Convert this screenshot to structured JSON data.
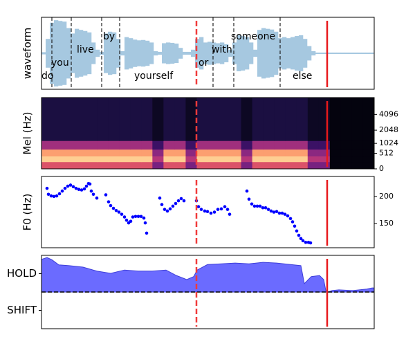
{
  "chart_data": [
    {
      "type": "waveform",
      "ylabel": "waveform",
      "xlim": [
        0,
        481
      ],
      "ylim": [
        -1,
        1
      ],
      "color": "#a6c8e0",
      "x": [
        3,
        9,
        15,
        21,
        27,
        33,
        39,
        45,
        51,
        57,
        63,
        69,
        75,
        81,
        87,
        93,
        99,
        105,
        111,
        117,
        123,
        129,
        135,
        141,
        147,
        153,
        159,
        165,
        171,
        177,
        183,
        189,
        195,
        201,
        207,
        213,
        219,
        225,
        231,
        237,
        243,
        249,
        255,
        261,
        267,
        273,
        279,
        285,
        291,
        297,
        303,
        309,
        315,
        321,
        327,
        333,
        339,
        345,
        351,
        357,
        363,
        369,
        375,
        381,
        387,
        393,
        399,
        405,
        411,
        417,
        423,
        429,
        435,
        441,
        447,
        453,
        459,
        465,
        471,
        477
      ],
      "values": [
        0.03,
        0.4,
        0.85,
        0.92,
        0.9,
        0.88,
        0.7,
        0.55,
        0.68,
        0.65,
        0.62,
        0.58,
        0.3,
        0.1,
        0.04,
        0.55,
        0.6,
        0.58,
        0.4,
        0.06,
        0.45,
        0.42,
        0.38,
        0.36,
        0.37,
        0.35,
        0.3,
        0.06,
        0.04,
        0.28,
        0.3,
        0.29,
        0.27,
        0.15,
        0.04,
        0.04,
        0.1,
        0.4,
        0.45,
        0.3,
        0.32,
        0.3,
        0.28,
        0.3,
        0.25,
        0.1,
        0.3,
        0.5,
        0.48,
        0.45,
        0.3,
        0.1,
        0.65,
        0.7,
        0.68,
        0.66,
        0.6,
        0.42,
        0.45,
        0.42,
        0.45,
        0.48,
        0.5,
        0.4,
        0.2,
        0.06,
        0.02,
        0.02,
        0.02,
        0.02,
        0.02,
        0.02,
        0.02,
        0.02,
        0.02,
        0.02,
        0.02,
        0.02,
        0.02,
        0.02
      ],
      "boundaries": [
        15,
        43,
        87,
        113,
        248,
        278,
        345
      ],
      "boundary_color": "#222222",
      "words": [
        {
          "text": "do",
          "x": 0,
          "y": -0.63
        },
        {
          "text": "you",
          "x": 14,
          "y": -0.27
        },
        {
          "text": "live",
          "x": 51,
          "y": 0.1
        },
        {
          "text": "by",
          "x": 89,
          "y": 0.46
        },
        {
          "text": "yourself",
          "x": 134,
          "y": -0.63
        },
        {
          "text": "or",
          "x": 227,
          "y": -0.27
        },
        {
          "text": "with",
          "x": 246,
          "y": 0.1
        },
        {
          "text": "someone",
          "x": 274,
          "y": 0.46
        },
        {
          "text": "else",
          "x": 363,
          "y": -0.63
        }
      ],
      "vlines": [
        {
          "x": 224,
          "style": "dashed",
          "color": "#f03a3a"
        },
        {
          "x": 413,
          "style": "solid",
          "color": "#e8191c"
        }
      ]
    },
    {
      "type": "heatmap",
      "ylabel": "Mel (Hz)",
      "xlim": [
        0,
        481
      ],
      "ylim": [
        0,
        8000
      ],
      "yscale": "mel",
      "yticks": [
        0,
        512,
        1024,
        2048,
        4096
      ],
      "ytick_side": "right",
      "colormap": "magma",
      "y_bins": [
        0,
        200,
        400,
        700,
        1200,
        8000
      ],
      "values": [
        [
          0.6,
          0.6,
          0.6,
          0.6,
          0.6,
          0.6,
          0.6,
          0.6,
          0.6,
          0.6,
          0.35,
          0.6,
          0.6,
          0.35,
          0.6,
          0.6,
          0.6,
          0.6,
          0.35,
          0.6,
          0.6,
          0.6,
          0.6,
          0.6,
          0.35,
          0.35,
          0.02,
          0.02,
          0.02,
          0.02
        ],
        [
          0.9,
          0.9,
          0.9,
          0.9,
          0.9,
          0.9,
          0.9,
          0.9,
          0.9,
          0.9,
          0.5,
          0.9,
          0.9,
          0.5,
          0.9,
          0.9,
          0.9,
          0.9,
          0.5,
          0.9,
          0.9,
          0.9,
          0.9,
          0.9,
          0.5,
          0.5,
          0.02,
          0.02,
          0.02,
          0.02
        ],
        [
          0.8,
          0.8,
          0.8,
          0.8,
          0.8,
          0.8,
          0.8,
          0.8,
          0.8,
          0.8,
          0.4,
          0.8,
          0.8,
          0.4,
          0.8,
          0.8,
          0.8,
          0.8,
          0.4,
          0.8,
          0.8,
          0.8,
          0.8,
          0.8,
          0.4,
          0.4,
          0.02,
          0.02,
          0.02,
          0.02
        ],
        [
          0.45,
          0.45,
          0.45,
          0.45,
          0.45,
          0.45,
          0.45,
          0.45,
          0.45,
          0.45,
          0.2,
          0.45,
          0.45,
          0.2,
          0.45,
          0.45,
          0.45,
          0.45,
          0.2,
          0.45,
          0.45,
          0.45,
          0.45,
          0.45,
          0.2,
          0.2,
          0.02,
          0.02,
          0.02,
          0.02
        ],
        [
          0.12,
          0.12,
          0.12,
          0.12,
          0.12,
          0.12,
          0.12,
          0.12,
          0.12,
          0.12,
          0.06,
          0.12,
          0.12,
          0.06,
          0.12,
          0.12,
          0.12,
          0.12,
          0.06,
          0.12,
          0.12,
          0.12,
          0.12,
          0.12,
          0.06,
          0.06,
          0.02,
          0.02,
          0.02,
          0.02
        ]
      ],
      "vlines": [
        {
          "x": 224,
          "style": "dashed",
          "color": "#f03a3a"
        },
        {
          "x": 413,
          "style": "solid",
          "color": "#e8191c"
        }
      ]
    },
    {
      "type": "scatter",
      "ylabel": "F0 (Hz)",
      "xlim": [
        0,
        481
      ],
      "ylim": [
        105,
        237
      ],
      "yticks": [
        150,
        200
      ],
      "ytick_side": "right",
      "color": "#0000ff",
      "x": [
        8,
        10,
        14,
        18,
        22,
        26,
        30,
        34,
        38,
        42,
        46,
        50,
        54,
        58,
        62,
        65,
        68,
        70,
        72,
        75,
        80,
        93,
        97,
        100,
        104,
        108,
        112,
        116,
        120,
        123,
        126,
        129,
        132,
        136,
        140,
        144,
        148,
        150,
        152,
        171,
        174,
        178,
        182,
        186,
        190,
        194,
        198,
        202,
        206,
        224,
        227,
        231,
        236,
        240,
        245,
        250,
        255,
        260,
        265,
        269,
        272,
        297,
        300,
        304,
        308,
        312,
        316,
        320,
        324,
        328,
        332,
        336,
        340,
        344,
        348,
        352,
        356,
        360,
        363,
        366,
        369,
        372,
        375,
        378,
        382,
        386,
        389
      ],
      "values": [
        215,
        204,
        201,
        200,
        201,
        205,
        210,
        215,
        219,
        221,
        218,
        215,
        213,
        212,
        214,
        219,
        224,
        223,
        210,
        204,
        197,
        203,
        190,
        183,
        178,
        174,
        171,
        167,
        162,
        156,
        151,
        154,
        162,
        163,
        163,
        163,
        160,
        151,
        132,
        197,
        185,
        176,
        173,
        177,
        182,
        187,
        192,
        196,
        192,
        192,
        181,
        176,
        173,
        172,
        169,
        171,
        176,
        177,
        181,
        176,
        167,
        210,
        195,
        186,
        182,
        182,
        182,
        179,
        179,
        176,
        173,
        171,
        172,
        169,
        169,
        167,
        164,
        159,
        153,
        145,
        136,
        128,
        122,
        118,
        115,
        115,
        114
      ],
      "vlines": [
        {
          "x": 224,
          "style": "dashed",
          "color": "#f03a3a"
        },
        {
          "x": 413,
          "style": "solid",
          "color": "#e8191c"
        }
      ]
    },
    {
      "type": "area",
      "xlim": [
        0,
        481
      ],
      "ylim": [
        -1,
        1
      ],
      "yticks": [
        {
          "value": 0.5,
          "label": "HOLD"
        },
        {
          "value": -0.5,
          "label": "SHIFT"
        }
      ],
      "ytick_side": "left",
      "color": "#6b6bff",
      "x": [
        0,
        8,
        15,
        25,
        40,
        60,
        80,
        100,
        120,
        140,
        160,
        180,
        195,
        210,
        220,
        225,
        240,
        260,
        280,
        300,
        320,
        340,
        360,
        375,
        380,
        390,
        402,
        408,
        411,
        414,
        420,
        430,
        450,
        470,
        478,
        481
      ],
      "values": [
        0.89,
        0.94,
        0.88,
        0.74,
        0.72,
        0.68,
        0.57,
        0.51,
        0.6,
        0.57,
        0.57,
        0.6,
        0.45,
        0.34,
        0.42,
        0.6,
        0.75,
        0.77,
        0.79,
        0.77,
        0.81,
        0.79,
        0.75,
        0.72,
        0.23,
        0.42,
        0.45,
        0.34,
        0.04,
        0,
        0.04,
        0.06,
        0.04,
        0.08,
        0.11,
        0.11
      ],
      "hlines": [
        {
          "y": 0,
          "style": "dashed",
          "color": "#000000"
        }
      ],
      "vlines": [
        {
          "x": 224,
          "style": "dashed",
          "color": "#f03a3a"
        },
        {
          "x": 413,
          "style": "solid",
          "color": "#e8191c"
        }
      ]
    }
  ]
}
